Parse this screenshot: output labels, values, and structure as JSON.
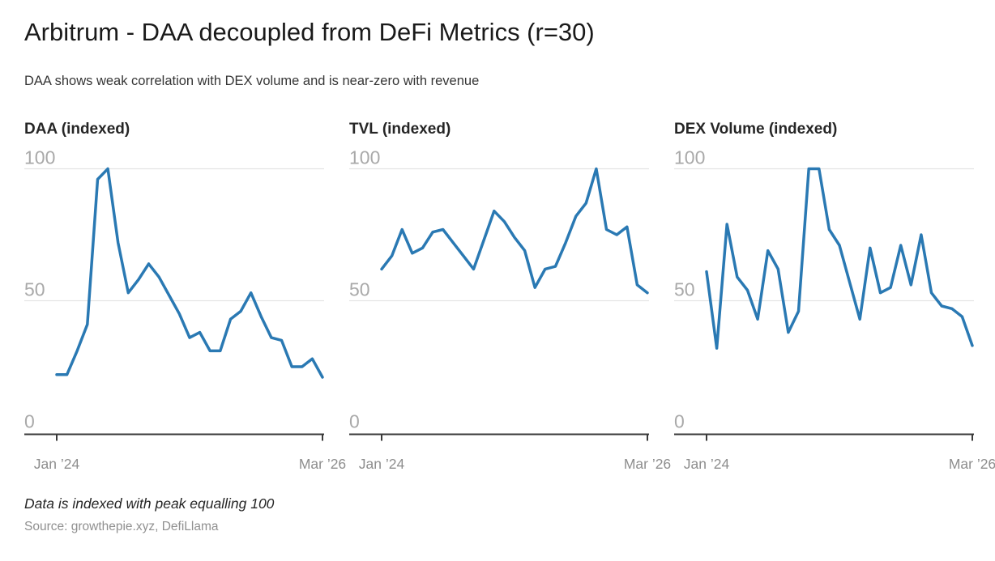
{
  "header": {
    "title": "Arbitrum - DAA decoupled from DeFi Metrics (r=30)",
    "subtitle": "DAA shows weak correlation with DEX volume and is near-zero with revenue"
  },
  "footer": {
    "note": "Data is indexed with peak equalling 100",
    "source": "Source: growthepie.xyz, DefiLlama"
  },
  "style": {
    "line_color": "#2a79b3",
    "grid_color": "#e4e4e4",
    "axis_color": "#3a3a3a",
    "ytick_color": "#a9a9a9",
    "xtick_color": "#8e8e8e"
  },
  "chart_data": [
    {
      "type": "line",
      "name": "daa",
      "title": "DAA (indexed)",
      "x": [
        "2024-01",
        "2024-02",
        "2024-03",
        "2024-04",
        "2024-05",
        "2024-06",
        "2024-07",
        "2024-08",
        "2024-09",
        "2024-10",
        "2024-11",
        "2024-12",
        "2025-01",
        "2025-02",
        "2025-03",
        "2025-04",
        "2025-05",
        "2025-06",
        "2025-07",
        "2025-08",
        "2025-09",
        "2025-10",
        "2025-11",
        "2025-12",
        "2026-01",
        "2026-02",
        "2026-03"
      ],
      "values": [
        22,
        22,
        31,
        41,
        96,
        100,
        72,
        53,
        58,
        64,
        59,
        52,
        45,
        36,
        38,
        31,
        31,
        43,
        46,
        53,
        44,
        36,
        35,
        25,
        25,
        28,
        21
      ],
      "ylim": [
        0,
        100
      ],
      "yticks": [
        0,
        50,
        100
      ],
      "xtick_labels": [
        "Jan ’24",
        "Mar ’26"
      ],
      "grid": "horizontal-at-50-and-100",
      "legend": false,
      "color": "#2a79b3"
    },
    {
      "type": "line",
      "name": "tvl",
      "title": "TVL (indexed)",
      "x": [
        "2024-01",
        "2024-02",
        "2024-03",
        "2024-04",
        "2024-05",
        "2024-06",
        "2024-07",
        "2024-08",
        "2024-09",
        "2024-10",
        "2024-11",
        "2024-12",
        "2025-01",
        "2025-02",
        "2025-03",
        "2025-04",
        "2025-05",
        "2025-06",
        "2025-07",
        "2025-08",
        "2025-09",
        "2025-10",
        "2025-11",
        "2025-12",
        "2026-01",
        "2026-02",
        "2026-03"
      ],
      "values": [
        62,
        67,
        77,
        68,
        70,
        76,
        77,
        72,
        67,
        62,
        73,
        84,
        80,
        74,
        69,
        55,
        62,
        63,
        72,
        82,
        87,
        100,
        77,
        75,
        78,
        56,
        53
      ],
      "ylim": [
        0,
        100
      ],
      "yticks": [
        0,
        50,
        100
      ],
      "xtick_labels": [
        "Jan ’24",
        "Mar ’26"
      ],
      "grid": "horizontal-at-50-and-100",
      "legend": false,
      "color": "#2a79b3"
    },
    {
      "type": "line",
      "name": "dex-volume",
      "title": "DEX Volume (indexed)",
      "x": [
        "2024-01",
        "2024-02",
        "2024-03",
        "2024-04",
        "2024-05",
        "2024-06",
        "2024-07",
        "2024-08",
        "2024-09",
        "2024-10",
        "2024-11",
        "2024-12",
        "2025-01",
        "2025-02",
        "2025-03",
        "2025-04",
        "2025-05",
        "2025-06",
        "2025-07",
        "2025-08",
        "2025-09",
        "2025-10",
        "2025-11",
        "2025-12",
        "2026-01",
        "2026-02",
        "2026-03"
      ],
      "values": [
        61,
        32,
        79,
        59,
        54,
        43,
        69,
        62,
        38,
        46,
        100,
        100,
        77,
        71,
        57,
        43,
        70,
        53,
        55,
        71,
        56,
        75,
        53,
        48,
        47,
        44,
        33
      ],
      "ylim": [
        0,
        100
      ],
      "yticks": [
        0,
        50,
        100
      ],
      "xtick_labels": [
        "Jan ’24",
        "Mar ’26"
      ],
      "grid": "horizontal-at-50-and-100",
      "legend": false,
      "color": "#2a79b3"
    }
  ]
}
